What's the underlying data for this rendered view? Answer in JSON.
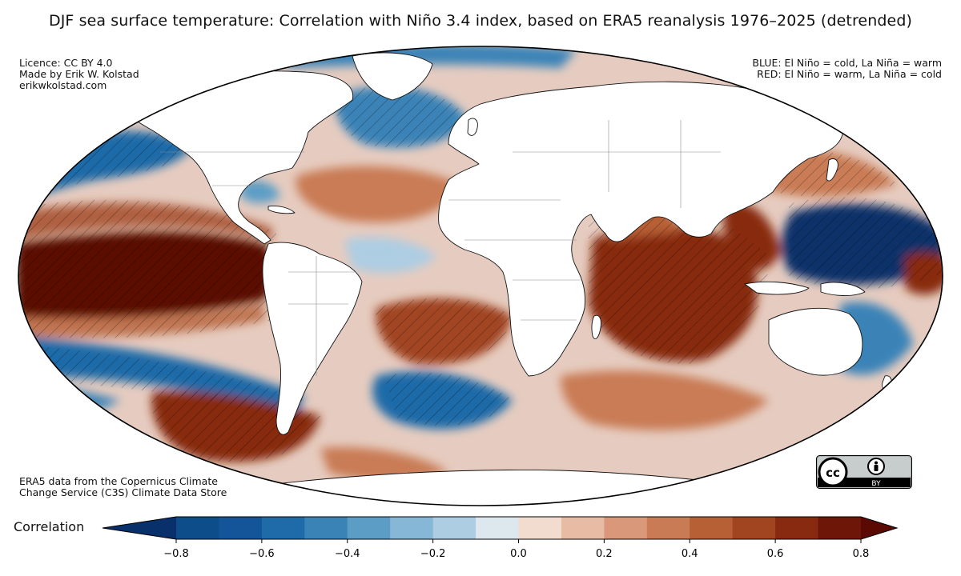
{
  "figure": {
    "title": "DJF sea surface temperature: Correlation with Niño 3.4 index, based on ERA5 reanalysis 1976–2025 (detrended)"
  },
  "annotations": {
    "top_left": [
      "Licence: CC BY 4.0",
      "Made by Erik W. Kolstad",
      "erikwkolstad.com"
    ],
    "top_right": [
      "BLUE: El Niño = cold, La Niña = warm",
      "RED: El Niño = warm, La Niña = cold"
    ],
    "bottom_left": [
      "ERA5 data from the Copernicus Climate",
      "Change Service (C3S) Climate Data Store"
    ]
  },
  "badge": {
    "label": "BY",
    "icon": "creative-commons-icon"
  },
  "colorbar": {
    "label": "Correlation",
    "ticks": [
      "−0.8",
      "−0.6",
      "−0.4",
      "−0.2",
      "0.0",
      "0.2",
      "0.4",
      "0.6",
      "0.8"
    ],
    "tick_values": [
      -0.8,
      -0.6,
      -0.4,
      -0.2,
      0.0,
      0.2,
      0.4,
      0.6,
      0.8
    ],
    "range": [
      -0.9,
      0.9
    ],
    "colors": [
      "#08306b",
      "#0d4d8a",
      "#14559a",
      "#1f6aa8",
      "#3a83b7",
      "#5c9dc6",
      "#86b7d6",
      "#adcde3",
      "#dce7ee",
      "#f2dcd0",
      "#e8bca4",
      "#d9987a",
      "#c97b55",
      "#b75f35",
      "#a14420",
      "#882a0f",
      "#6e1607",
      "#5a0a02"
    ],
    "extend": "both"
  },
  "map": {
    "projection": "mollweide",
    "colors": {
      "ocean_neutral": "#e6ccc0",
      "land": "#ffffff",
      "coast": "#111111",
      "border": "#8a8a8a"
    }
  }
}
